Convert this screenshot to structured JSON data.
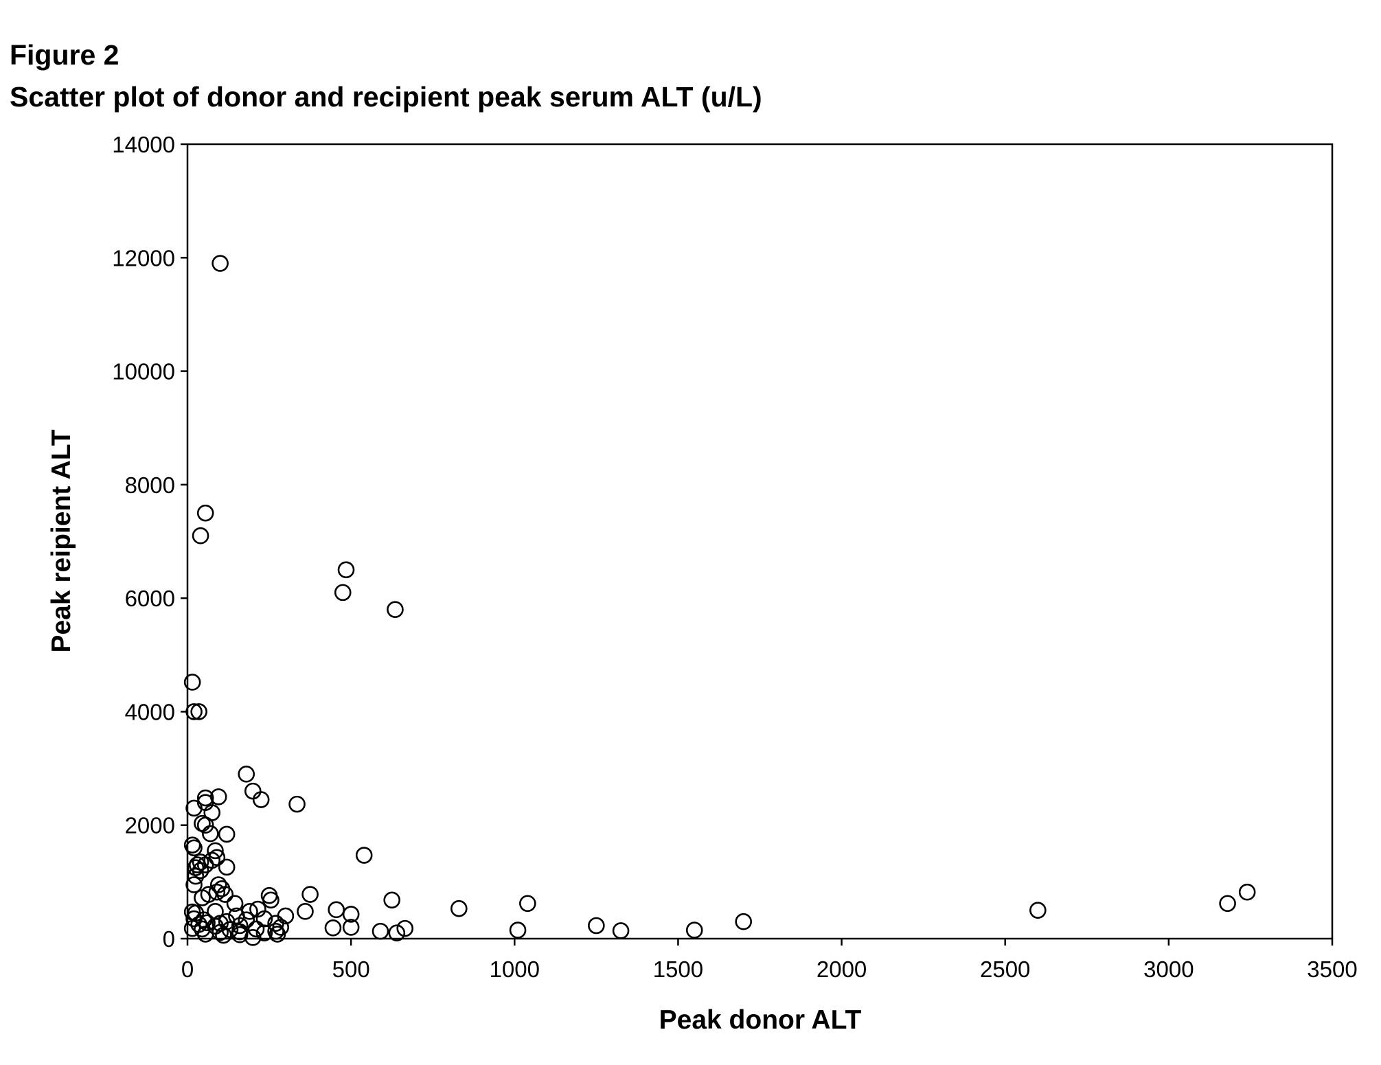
{
  "figure": {
    "label": "Figure 2",
    "title": "Scatter plot of donor and recipient peak serum ALT (u/L)"
  },
  "chart_data": {
    "type": "scatter",
    "xlabel": "Peak donor ALT",
    "ylabel": "Peak reipient ALT",
    "xlim": [
      0,
      3500
    ],
    "ylim": [
      0,
      14000
    ],
    "xticks": [
      0,
      500,
      1000,
      1500,
      2000,
      2500,
      3000,
      3500
    ],
    "yticks": [
      0,
      2000,
      4000,
      6000,
      8000,
      10000,
      12000,
      14000
    ],
    "grid": false,
    "marker": "open-circle",
    "marker_color": "#000000",
    "series": [
      {
        "points": [
          [
            100,
            11900
          ],
          [
            55,
            7500
          ],
          [
            40,
            7100
          ],
          [
            485,
            6500
          ],
          [
            475,
            6100
          ],
          [
            635,
            5800
          ],
          [
            15,
            4520
          ],
          [
            20,
            4000
          ],
          [
            35,
            4000
          ],
          [
            180,
            2900
          ],
          [
            200,
            2600
          ],
          [
            225,
            2450
          ],
          [
            335,
            2370
          ],
          [
            55,
            2480
          ],
          [
            95,
            2500
          ],
          [
            55,
            2400
          ],
          [
            20,
            2300
          ],
          [
            75,
            2220
          ],
          [
            45,
            2030
          ],
          [
            55,
            2000
          ],
          [
            70,
            1850
          ],
          [
            120,
            1840
          ],
          [
            15,
            1650
          ],
          [
            20,
            1600
          ],
          [
            85,
            1550
          ],
          [
            540,
            1470
          ],
          [
            90,
            1430
          ],
          [
            75,
            1380
          ],
          [
            40,
            1350
          ],
          [
            30,
            1300
          ],
          [
            55,
            1300
          ],
          [
            25,
            1250
          ],
          [
            120,
            1260
          ],
          [
            40,
            1200
          ],
          [
            25,
            1100
          ],
          [
            20,
            950
          ],
          [
            95,
            950
          ],
          [
            105,
            880
          ],
          [
            90,
            820
          ],
          [
            115,
            780
          ],
          [
            65,
            780
          ],
          [
            250,
            760
          ],
          [
            375,
            780
          ],
          [
            45,
            720
          ],
          [
            255,
            680
          ],
          [
            625,
            680
          ],
          [
            145,
            620
          ],
          [
            1040,
            620
          ],
          [
            3180,
            620
          ],
          [
            3240,
            820
          ],
          [
            830,
            530
          ],
          [
            2600,
            500
          ],
          [
            455,
            510
          ],
          [
            360,
            480
          ],
          [
            215,
            520
          ],
          [
            190,
            480
          ],
          [
            85,
            480
          ],
          [
            15,
            470
          ],
          [
            25,
            450
          ],
          [
            500,
            430
          ],
          [
            300,
            400
          ],
          [
            150,
            400
          ],
          [
            235,
            350
          ],
          [
            20,
            350
          ],
          [
            180,
            330
          ],
          [
            50,
            330
          ],
          [
            1700,
            300
          ],
          [
            120,
            300
          ],
          [
            60,
            280
          ],
          [
            270,
            270
          ],
          [
            100,
            270
          ],
          [
            35,
            250
          ],
          [
            1250,
            230
          ],
          [
            160,
            230
          ],
          [
            85,
            220
          ],
          [
            285,
            200
          ],
          [
            500,
            200
          ],
          [
            445,
            190
          ],
          [
            665,
            180
          ],
          [
            15,
            180
          ],
          [
            210,
            170
          ],
          [
            45,
            170
          ],
          [
            130,
            160
          ],
          [
            1010,
            150
          ],
          [
            1550,
            150
          ],
          [
            1325,
            140
          ],
          [
            590,
            130
          ],
          [
            270,
            130
          ],
          [
            160,
            120
          ],
          [
            100,
            110
          ],
          [
            640,
            100
          ],
          [
            235,
            100
          ],
          [
            55,
            80
          ],
          [
            275,
            80
          ],
          [
            160,
            70
          ],
          [
            110,
            60
          ],
          [
            200,
            20
          ]
        ]
      }
    ]
  }
}
